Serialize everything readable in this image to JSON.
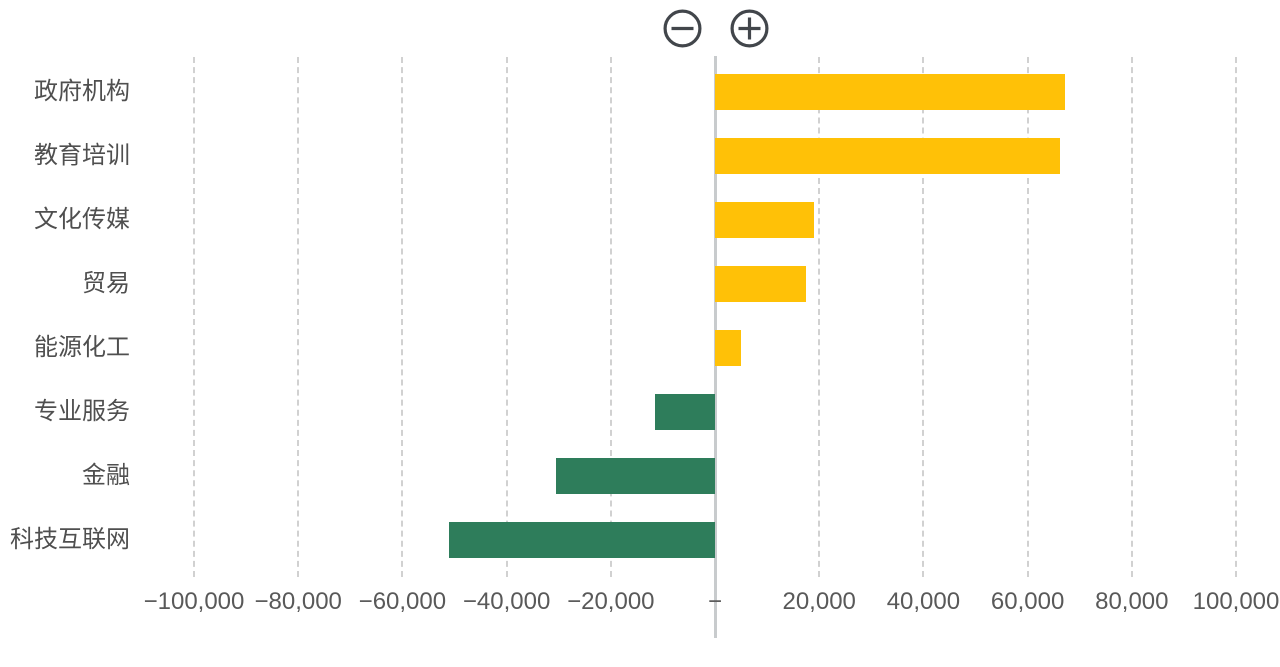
{
  "toolbar": {
    "zoom_out_icon": "minus-circle",
    "zoom_in_icon": "plus-circle",
    "icon_color": "#42464B"
  },
  "chart_data": {
    "type": "bar",
    "orientation": "horizontal",
    "title": "",
    "xlabel": "",
    "ylabel": "",
    "categories": [
      "政府机构",
      "教育培训",
      "文化传媒",
      "贸易",
      "能源化工",
      "专业服务",
      "金融",
      "科技互联网"
    ],
    "values": [
      67200,
      66300,
      19000,
      17400,
      5000,
      -11500,
      -30500,
      -51000
    ],
    "xlim": [
      -100000,
      100000
    ],
    "x_ticks": [
      -100000,
      -80000,
      -60000,
      -40000,
      -20000,
      0,
      20000,
      40000,
      60000,
      80000,
      100000
    ],
    "x_tick_labels": [
      "−100,000",
      "−80,000",
      "−60,000",
      "−40,000",
      "−20,000",
      "−",
      "20,000",
      "40,000",
      "60,000",
      "80,000",
      "100,000"
    ],
    "grid": "vertical-dashed",
    "legend": "none",
    "positive_color": "#FFC107",
    "negative_color": "#2E7D5B",
    "grid_color": "#d1d1d1",
    "zero_axis_color": "#c8cbcd",
    "category_label_color": "#4f4f4f",
    "tick_label_color": "#595959"
  }
}
